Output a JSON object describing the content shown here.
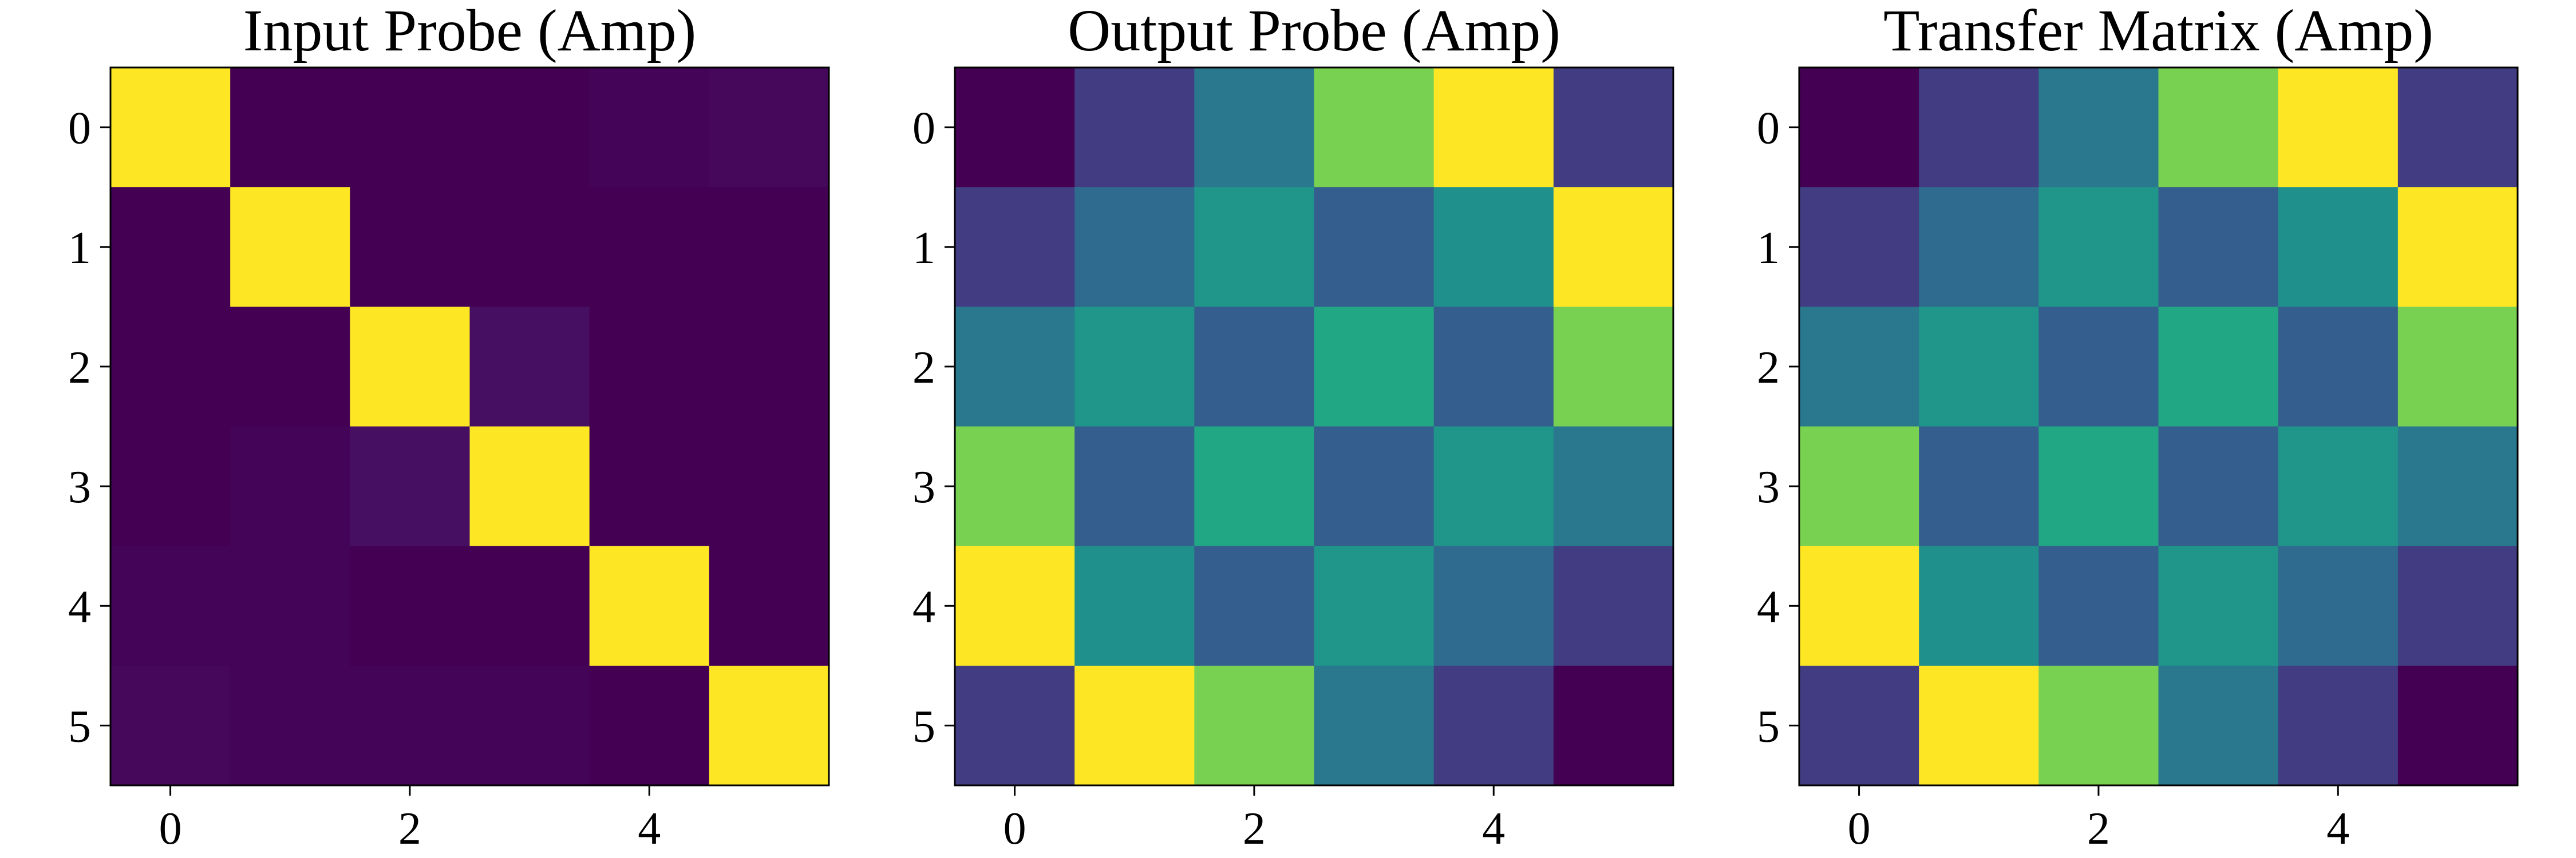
{
  "chart_data": [
    {
      "type": "heatmap",
      "title": "Input Probe (Amp)",
      "x_ticks": [
        0,
        2,
        4
      ],
      "y_ticks": [
        0,
        1,
        2,
        3,
        4,
        5
      ],
      "xlim": [
        -0.5,
        5.5
      ],
      "ylim": [
        5.5,
        -0.5
      ],
      "colormap": "viridis",
      "grid": false,
      "values": [
        [
          1.0,
          0.02,
          0.02,
          0.02,
          0.03,
          0.04
        ],
        [
          0.02,
          1.0,
          0.02,
          0.02,
          0.02,
          0.02
        ],
        [
          0.02,
          0.02,
          1.0,
          0.06,
          0.02,
          0.02
        ],
        [
          0.02,
          0.03,
          0.06,
          1.0,
          0.02,
          0.02
        ],
        [
          0.03,
          0.03,
          0.02,
          0.02,
          1.0,
          0.02
        ],
        [
          0.04,
          0.03,
          0.03,
          0.03,
          0.02,
          1.0
        ]
      ]
    },
    {
      "type": "heatmap",
      "title": "Output Probe (Amp)",
      "x_ticks": [
        0,
        2,
        4
      ],
      "y_ticks": [
        0,
        1,
        2,
        3,
        4,
        5
      ],
      "xlim": [
        -0.5,
        5.5
      ],
      "ylim": [
        5.5,
        -0.5
      ],
      "colormap": "viridis",
      "grid": false,
      "values": [
        [
          0.0,
          0.18,
          0.4,
          0.8,
          1.0,
          0.18
        ],
        [
          0.18,
          0.35,
          0.52,
          0.3,
          0.5,
          1.0
        ],
        [
          0.4,
          0.52,
          0.3,
          0.6,
          0.3,
          0.8
        ],
        [
          0.8,
          0.3,
          0.6,
          0.3,
          0.52,
          0.4
        ],
        [
          1.0,
          0.5,
          0.3,
          0.52,
          0.35,
          0.18
        ],
        [
          0.18,
          1.0,
          0.8,
          0.4,
          0.18,
          0.0
        ]
      ]
    },
    {
      "type": "heatmap",
      "title": "Transfer Matrix (Amp)",
      "x_ticks": [
        0,
        2,
        4
      ],
      "y_ticks": [
        0,
        1,
        2,
        3,
        4,
        5
      ],
      "xlim": [
        -0.5,
        5.5
      ],
      "ylim": [
        5.5,
        -0.5
      ],
      "colormap": "viridis",
      "grid": false,
      "values": [
        [
          0.0,
          0.18,
          0.4,
          0.8,
          1.0,
          0.18
        ],
        [
          0.18,
          0.35,
          0.52,
          0.3,
          0.5,
          1.0
        ],
        [
          0.4,
          0.52,
          0.3,
          0.6,
          0.3,
          0.8
        ],
        [
          0.8,
          0.3,
          0.6,
          0.3,
          0.52,
          0.4
        ],
        [
          1.0,
          0.5,
          0.3,
          0.52,
          0.35,
          0.18
        ],
        [
          0.18,
          1.0,
          0.8,
          0.4,
          0.18,
          0.0
        ]
      ]
    }
  ]
}
